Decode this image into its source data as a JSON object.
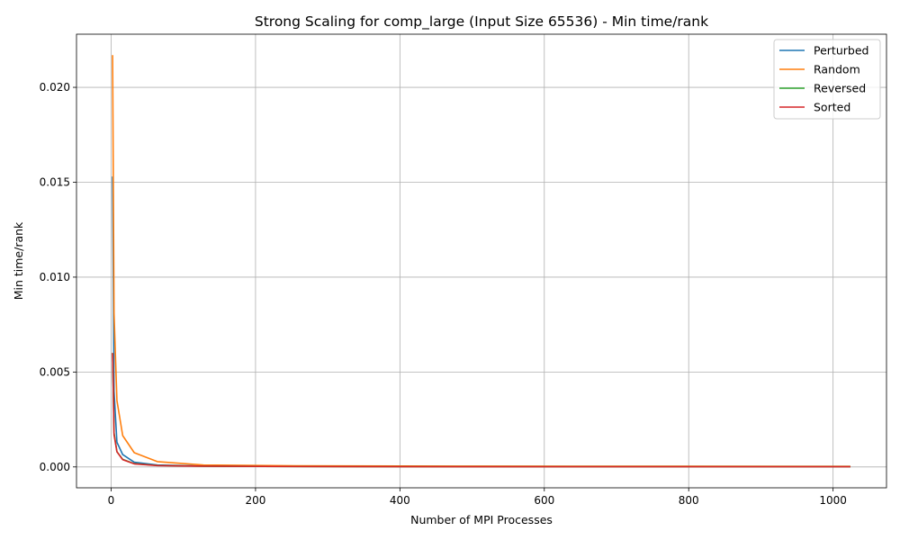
{
  "chart_data": {
    "type": "line",
    "title": "Strong Scaling for comp_large (Input Size 65536) - Min time/rank",
    "xlabel": "Number of MPI Processes",
    "ylabel": "Min time/rank",
    "xlim": [
      -48,
      1074
    ],
    "ylim": [
      -0.0011,
      0.0228
    ],
    "xticks": [
      0,
      200,
      400,
      600,
      800,
      1000
    ],
    "yticks": [
      0.0,
      0.005,
      0.01,
      0.015,
      0.02
    ],
    "xtick_labels": [
      "0",
      "200",
      "400",
      "600",
      "800",
      "1000"
    ],
    "ytick_labels": [
      "0.000",
      "0.005",
      "0.010",
      "0.015",
      "0.020"
    ],
    "grid": true,
    "legend_position": "top-right",
    "x": [
      2,
      4,
      8,
      16,
      32,
      64,
      128,
      256,
      512,
      1024
    ],
    "series": [
      {
        "name": "Perturbed",
        "color": "#1f77b4",
        "values": [
          0.0153,
          0.004,
          0.0013,
          0.00065,
          0.00025,
          0.0001,
          5e-05,
          3e-05,
          2e-05,
          1e-05
        ]
      },
      {
        "name": "Random",
        "color": "#ff7f0e",
        "values": [
          0.0217,
          0.0081,
          0.0035,
          0.00165,
          0.00075,
          0.00028,
          0.0001,
          6e-05,
          4e-05,
          3e-05
        ]
      },
      {
        "name": "Reversed",
        "color": "#2ca02c",
        "values": [
          0.006,
          0.0018,
          0.0008,
          0.0004,
          0.00017,
          8e-05,
          4e-05,
          2e-05,
          1e-05,
          1e-05
        ]
      },
      {
        "name": "Sorted",
        "color": "#d62728",
        "values": [
          0.006,
          0.0017,
          0.0008,
          0.00038,
          0.00016,
          7e-05,
          4e-05,
          2e-05,
          1e-05,
          1e-05
        ]
      }
    ]
  }
}
